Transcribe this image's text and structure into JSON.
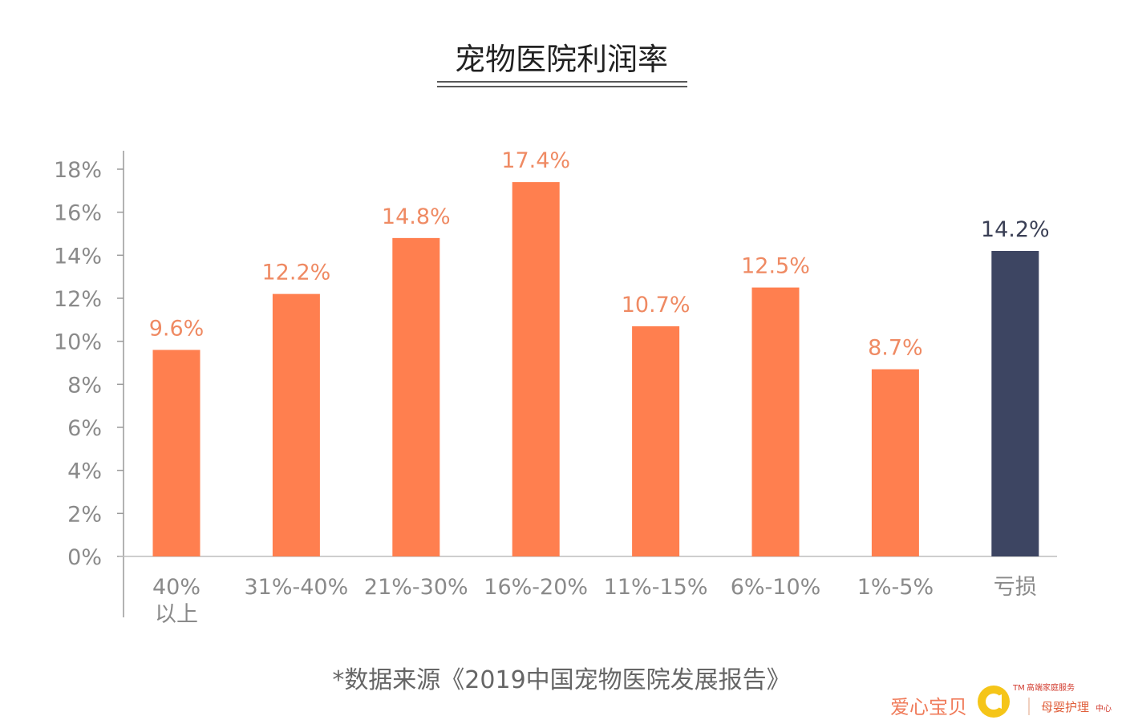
{
  "chart_data": {
    "type": "bar",
    "title": "宠物医院利润率",
    "categories": [
      [
        "40%",
        "以上"
      ],
      [
        "31%-40%"
      ],
      [
        "21%-30%"
      ],
      [
        "16%-20%"
      ],
      [
        "11%-15%"
      ],
      [
        "6%-10%"
      ],
      [
        "1%-5%"
      ],
      [
        "亏损"
      ]
    ],
    "values": [
      9.6,
      12.2,
      14.8,
      17.4,
      10.7,
      12.5,
      8.7,
      14.2
    ],
    "data_labels": [
      "9.6%",
      "12.2%",
      "14.8%",
      "17.4%",
      "10.7%",
      "12.5%",
      "8.7%",
      "14.2%"
    ],
    "bar_colors": [
      "#ff7f4f",
      "#ff7f4f",
      "#ff7f4f",
      "#ff7f4f",
      "#ff7f4f",
      "#ff7f4f",
      "#ff7f4f",
      "#3d4562"
    ],
    "label_colors": [
      "#ef8a63",
      "#ef8a63",
      "#ef8a63",
      "#ef8a63",
      "#ef8a63",
      "#ef8a63",
      "#ef8a63",
      "#3a3f55"
    ],
    "y_ticks": [
      "0%",
      "2%",
      "4%",
      "6%",
      "8%",
      "10%",
      "12%",
      "14%",
      "16%",
      "18%"
    ],
    "ylim": [
      0,
      18
    ],
    "xlabel": "",
    "ylabel": "",
    "grid": false,
    "source_note": "*数据来源《2019中国宠物医院发展报告》"
  },
  "watermark": {
    "brand": "爱心宝贝",
    "trademark": "TM",
    "tagline": "高端家庭服务",
    "subtitle_main": "母婴护理",
    "subtitle_small": "中心",
    "colors": {
      "brand": "#f07b5a",
      "logo": "#f5c518"
    }
  }
}
